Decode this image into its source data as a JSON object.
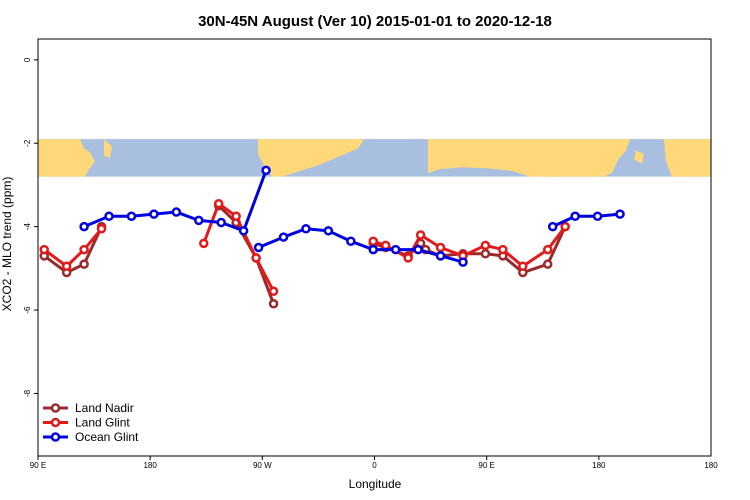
{
  "chart_data": {
    "type": "line",
    "title": "30N-45N August (Ver 10)   2015-01-01 to 2020-12-18",
    "xlabel": "Longitude",
    "ylabel": "XCO2 - MLO trend (ppm)",
    "xlim": [
      -90,
      180
    ],
    "ylim": [
      -9.5,
      0.5
    ],
    "x_ticks": [
      {
        "value": -90,
        "label": "90 E"
      },
      {
        "value": -45,
        "label": "180"
      },
      {
        "value": 0,
        "label": "90 W"
      },
      {
        "value": 45,
        "label": "0"
      },
      {
        "value": 90,
        "label": "90 E"
      },
      {
        "value": 135,
        "label": "180"
      }
    ],
    "y_ticks": [
      {
        "value": 0,
        "label": "0"
      },
      {
        "value": -2,
        "label": "-2"
      },
      {
        "value": -4,
        "label": "-4"
      },
      {
        "value": -6,
        "label": "-6"
      },
      {
        "value": -8,
        "label": "-8"
      }
    ],
    "grid": false,
    "legend_position": "bottom-left",
    "map_band": {
      "y_range": [
        -2.8,
        -1.9
      ],
      "ocean_color": "#a9bfdf",
      "land_color": "#ffd87a"
    },
    "series": [
      {
        "name": "Land Nadir",
        "color": "#9c2a2a",
        "segments": [
          [
            [
              -87.5,
              -4.7
            ],
            [
              -78.5,
              -5.1
            ],
            [
              -71.5,
              -4.9
            ],
            [
              -64.5,
              -4.0
            ]
          ],
          [
            [
              -17.5,
              -3.5
            ],
            [
              -10.5,
              -3.9
            ],
            [
              -2.5,
              -4.75
            ],
            [
              4.5,
              -5.85
            ]
          ],
          [
            [
              44.5,
              -4.4
            ],
            [
              49.5,
              -4.5
            ],
            [
              58.5,
              -4.7
            ],
            [
              63.5,
              -4.4
            ],
            [
              65.5,
              -4.55
            ],
            [
              71.5,
              -4.7
            ],
            [
              80.5,
              -4.65
            ],
            [
              89.5,
              -4.65
            ],
            [
              96.5,
              -4.7
            ],
            [
              104.5,
              -5.1
            ],
            [
              114.5,
              -4.9
            ],
            [
              121.5,
              -4.0
            ]
          ]
        ]
      },
      {
        "name": "Land Glint",
        "color": "#e31a1c",
        "segments": [
          [
            [
              -87.5,
              -4.55
            ],
            [
              -78.5,
              -4.95
            ],
            [
              -71.5,
              -4.55
            ],
            [
              -64.5,
              -4.05
            ]
          ],
          [
            [
              -23.5,
              -4.4
            ],
            [
              -17.5,
              -3.45
            ],
            [
              -10.5,
              -3.75
            ],
            [
              -2.5,
              -4.75
            ],
            [
              4.5,
              -5.55
            ]
          ],
          [
            [
              44.5,
              -4.35
            ],
            [
              49.5,
              -4.45
            ],
            [
              58.5,
              -4.75
            ],
            [
              63.5,
              -4.2
            ],
            [
              71.5,
              -4.5
            ],
            [
              80.5,
              -4.7
            ],
            [
              89.5,
              -4.45
            ],
            [
              96.5,
              -4.55
            ],
            [
              104.5,
              -4.95
            ],
            [
              114.5,
              -4.55
            ],
            [
              121.5,
              -4.0
            ]
          ]
        ]
      },
      {
        "name": "Ocean Glint",
        "color": "#0000e0",
        "segments": [
          [
            [
              -71.5,
              -4.0
            ],
            [
              -61.5,
              -3.75
            ],
            [
              -52.5,
              -3.75
            ],
            [
              -43.5,
              -3.7
            ],
            [
              -34.5,
              -3.65
            ],
            [
              -25.5,
              -3.85
            ],
            [
              -16.5,
              -3.9
            ],
            [
              -7.5,
              -4.1
            ],
            [
              1.5,
              -2.65
            ]
          ],
          [
            [
              -1.5,
              -4.5
            ],
            [
              8.5,
              -4.25
            ],
            [
              17.5,
              -4.05
            ],
            [
              26.5,
              -4.1
            ],
            [
              35.5,
              -4.35
            ],
            [
              44.5,
              -4.55
            ],
            [
              53.5,
              -4.55
            ],
            [
              62.5,
              -4.55
            ],
            [
              71.5,
              -4.7
            ],
            [
              80.5,
              -4.85
            ]
          ],
          [
            [
              116.5,
              -4.0
            ],
            [
              125.5,
              -3.75
            ],
            [
              134.5,
              -3.75
            ],
            [
              143.5,
              -3.7
            ]
          ]
        ]
      }
    ]
  }
}
